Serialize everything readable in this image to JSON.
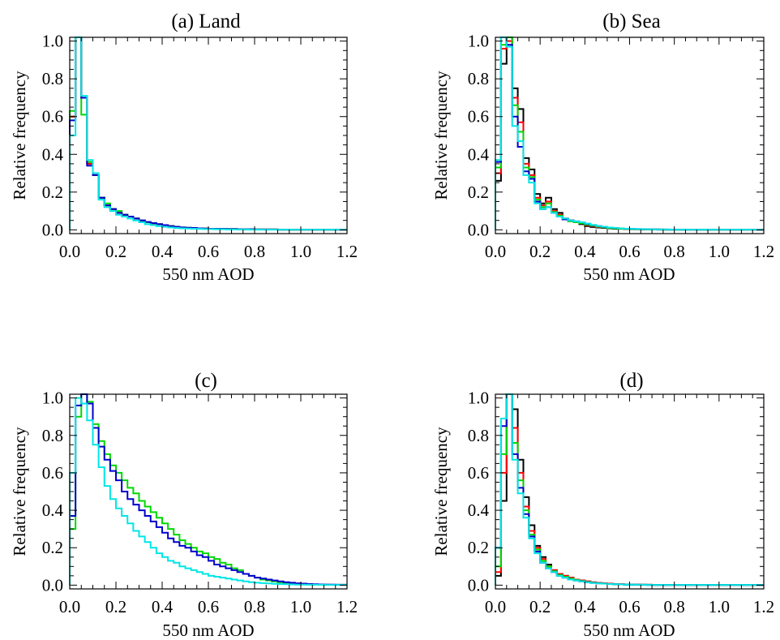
{
  "chart_data": [
    {
      "type": "line",
      "title": "(a) Land",
      "xlabel": "550 nm AOD",
      "ylabel": "Relative frequency",
      "xlim": [
        0,
        1.2
      ],
      "ylim": [
        -0.02,
        1.02
      ],
      "step": "histogram",
      "bin_width": 0.025,
      "x_ticks": [
        "0.0",
        "0.2",
        "0.4",
        "0.6",
        "0.8",
        "1.0",
        "1.2"
      ],
      "y_ticks": [
        "0.0",
        "0.2",
        "0.4",
        "0.6",
        "0.8",
        "1.0"
      ],
      "series": [
        {
          "color": "#000000",
          "values": [
            0.6,
            1.02,
            0.7,
            0.35,
            0.29,
            0.17,
            0.13,
            0.11,
            0.09,
            0.08,
            0.07,
            0.06,
            0.05,
            0.04,
            0.035,
            0.03,
            0.025,
            0.02,
            0.015,
            0.012,
            0.01,
            0.01,
            0.008,
            0.007,
            0.006,
            0.005,
            0.005,
            0.004,
            0.004,
            0.003,
            0.003,
            0.003,
            0.002,
            0.002,
            0.002,
            0.002,
            0.001,
            0.001,
            0.001,
            0.001,
            0.001,
            0.001,
            0.001,
            0.001,
            0.001,
            0.001,
            0.001,
            0.001
          ]
        },
        {
          "color": "#ff0000",
          "values": [
            0.6,
            1.02,
            0.7,
            0.35,
            0.29,
            0.17,
            0.13,
            0.11,
            0.09,
            0.08,
            0.07,
            0.06,
            0.05,
            0.04,
            0.035,
            0.03,
            0.025,
            0.02,
            0.015,
            0.012,
            0.01,
            0.01,
            0.008,
            0.007,
            0.006,
            0.005,
            0.005,
            0.004,
            0.004,
            0.003,
            0.003,
            0.003,
            0.002,
            0.002,
            0.002,
            0.002,
            0.001,
            0.001,
            0.001,
            0.001,
            0.001,
            0.001,
            0.001,
            0.001,
            0.001,
            0.001,
            0.001,
            0.001
          ]
        },
        {
          "color": "#00d800",
          "values": [
            0.63,
            1.02,
            0.61,
            0.36,
            0.3,
            0.17,
            0.14,
            0.11,
            0.1,
            0.08,
            0.07,
            0.06,
            0.05,
            0.04,
            0.035,
            0.03,
            0.025,
            0.02,
            0.016,
            0.013,
            0.011,
            0.01,
            0.008,
            0.007,
            0.006,
            0.005,
            0.005,
            0.004,
            0.004,
            0.003,
            0.003,
            0.003,
            0.002,
            0.002,
            0.002,
            0.002,
            0.001,
            0.001,
            0.001,
            0.001,
            0.001,
            0.001,
            0.001,
            0.001,
            0.001,
            0.001,
            0.001,
            0.001
          ]
        },
        {
          "color": "#0000cc",
          "values": [
            0.58,
            1.02,
            0.7,
            0.34,
            0.29,
            0.17,
            0.13,
            0.11,
            0.09,
            0.08,
            0.07,
            0.06,
            0.05,
            0.042,
            0.036,
            0.03,
            0.025,
            0.02,
            0.016,
            0.013,
            0.011,
            0.01,
            0.008,
            0.007,
            0.006,
            0.005,
            0.005,
            0.004,
            0.004,
            0.003,
            0.003,
            0.003,
            0.002,
            0.002,
            0.002,
            0.002,
            0.001,
            0.001,
            0.001,
            0.001,
            0.001,
            0.001,
            0.001,
            0.001,
            0.001,
            0.001,
            0.001,
            0.001
          ]
        },
        {
          "color": "#00e6e6",
          "values": [
            0.5,
            1.02,
            0.71,
            0.37,
            0.3,
            0.16,
            0.12,
            0.1,
            0.08,
            0.07,
            0.06,
            0.05,
            0.04,
            0.03,
            0.025,
            0.02,
            0.016,
            0.013,
            0.01,
            0.008,
            0.007,
            0.006,
            0.005,
            0.004,
            0.004,
            0.003,
            0.003,
            0.002,
            0.002,
            0.002,
            0.002,
            0.001,
            0.001,
            0.001,
            0.001,
            0.001,
            0.001,
            0.001,
            0.001,
            0.001,
            0.001,
            0.001,
            0.001,
            0.001,
            0.001,
            0.001,
            0.001,
            0.001
          ]
        }
      ]
    },
    {
      "type": "line",
      "title": "(b) Sea",
      "xlabel": "550 nm AOD",
      "ylabel": "Relative frequency",
      "xlim": [
        0,
        1.2
      ],
      "ylim": [
        -0.02,
        1.02
      ],
      "step": "histogram",
      "bin_width": 0.025,
      "x_ticks": [
        "0.0",
        "0.2",
        "0.4",
        "0.6",
        "0.8",
        "1.0",
        "1.2"
      ],
      "y_ticks": [
        "0.0",
        "0.2",
        "0.4",
        "0.6",
        "0.8",
        "1.0"
      ],
      "series": [
        {
          "color": "#000000",
          "values": [
            0.26,
            0.88,
            1.02,
            0.75,
            0.64,
            0.38,
            0.32,
            0.19,
            0.14,
            0.17,
            0.11,
            0.09,
            0.06,
            0.05,
            0.04,
            0.03,
            0.02,
            0.015,
            0.012,
            0.01,
            0.008,
            0.006,
            0.005,
            0.004,
            0.003,
            0.003,
            0.002,
            0.002,
            0.002,
            0.001,
            0.001,
            0.001,
            0.001,
            0.001,
            0.001,
            0.001,
            0.001,
            0.001,
            0.001,
            0.001,
            0.001,
            0.001,
            0.001,
            0.001,
            0.001,
            0.001,
            0.001,
            0.001
          ]
        },
        {
          "color": "#ff0000",
          "values": [
            0.3,
            0.96,
            1.0,
            0.7,
            0.57,
            0.35,
            0.29,
            0.17,
            0.13,
            0.15,
            0.1,
            0.08,
            0.06,
            0.05,
            0.04,
            0.035,
            0.025,
            0.02,
            0.015,
            0.012,
            0.01,
            0.008,
            0.006,
            0.005,
            0.004,
            0.003,
            0.003,
            0.002,
            0.002,
            0.002,
            0.001,
            0.001,
            0.001,
            0.001,
            0.001,
            0.001,
            0.001,
            0.001,
            0.001,
            0.001,
            0.001,
            0.001,
            0.001,
            0.001,
            0.001,
            0.001,
            0.001,
            0.001
          ]
        },
        {
          "color": "#00d800",
          "values": [
            0.33,
            0.98,
            1.02,
            0.66,
            0.52,
            0.33,
            0.28,
            0.16,
            0.12,
            0.14,
            0.095,
            0.075,
            0.055,
            0.045,
            0.04,
            0.035,
            0.028,
            0.022,
            0.017,
            0.013,
            0.01,
            0.008,
            0.006,
            0.005,
            0.004,
            0.003,
            0.003,
            0.002,
            0.002,
            0.002,
            0.001,
            0.001,
            0.001,
            0.001,
            0.001,
            0.001,
            0.001,
            0.001,
            0.001,
            0.001,
            0.001,
            0.001,
            0.001,
            0.001,
            0.001,
            0.001,
            0.001,
            0.001
          ]
        },
        {
          "color": "#0000cc",
          "values": [
            0.36,
            1.02,
            0.98,
            0.6,
            0.44,
            0.31,
            0.27,
            0.15,
            0.11,
            0.12,
            0.09,
            0.07,
            0.055,
            0.05,
            0.045,
            0.04,
            0.032,
            0.025,
            0.02,
            0.015,
            0.012,
            0.01,
            0.008,
            0.006,
            0.005,
            0.004,
            0.003,
            0.003,
            0.002,
            0.002,
            0.002,
            0.001,
            0.001,
            0.001,
            0.001,
            0.001,
            0.001,
            0.001,
            0.001,
            0.001,
            0.001,
            0.001,
            0.001,
            0.001,
            0.001,
            0.001,
            0.001,
            0.001
          ]
        },
        {
          "color": "#00e6e6",
          "values": [
            0.37,
            1.02,
            0.97,
            0.55,
            0.47,
            0.29,
            0.25,
            0.14,
            0.11,
            0.12,
            0.09,
            0.07,
            0.06,
            0.05,
            0.045,
            0.04,
            0.033,
            0.026,
            0.02,
            0.016,
            0.012,
            0.01,
            0.008,
            0.006,
            0.005,
            0.004,
            0.003,
            0.003,
            0.002,
            0.002,
            0.002,
            0.001,
            0.001,
            0.001,
            0.001,
            0.001,
            0.001,
            0.001,
            0.001,
            0.001,
            0.001,
            0.001,
            0.001,
            0.001,
            0.001,
            0.001,
            0.001,
            0.001
          ]
        }
      ]
    },
    {
      "type": "line",
      "title": "(c)",
      "xlabel": "550 nm AOD",
      "ylabel": "Relative frequency",
      "xlim": [
        0,
        1.2
      ],
      "ylim": [
        -0.02,
        1.02
      ],
      "step": "histogram",
      "bin_width": 0.025,
      "x_ticks": [
        "0.0",
        "0.2",
        "0.4",
        "0.6",
        "0.8",
        "1.0",
        "1.2"
      ],
      "y_ticks": [
        "0.0",
        "0.2",
        "0.4",
        "0.6",
        "0.8",
        "1.0"
      ],
      "series": [
        {
          "color": "#00d800",
          "values": [
            0.3,
            0.9,
            1.02,
            0.98,
            0.86,
            0.77,
            0.7,
            0.64,
            0.6,
            0.56,
            0.52,
            0.49,
            0.45,
            0.42,
            0.39,
            0.36,
            0.33,
            0.3,
            0.27,
            0.24,
            0.22,
            0.2,
            0.18,
            0.17,
            0.15,
            0.14,
            0.12,
            0.11,
            0.09,
            0.08,
            0.06,
            0.05,
            0.04,
            0.03,
            0.025,
            0.02,
            0.015,
            0.012,
            0.01,
            0.008,
            0.006,
            0.005,
            0.004,
            0.003,
            0.003,
            0.002,
            0.002,
            0.002
          ]
        },
        {
          "color": "#0000cc",
          "values": [
            0.37,
            0.96,
            1.02,
            0.97,
            0.84,
            0.74,
            0.67,
            0.61,
            0.56,
            0.5,
            0.46,
            0.43,
            0.4,
            0.37,
            0.34,
            0.31,
            0.28,
            0.25,
            0.23,
            0.21,
            0.2,
            0.18,
            0.16,
            0.15,
            0.13,
            0.11,
            0.1,
            0.09,
            0.08,
            0.07,
            0.06,
            0.05,
            0.04,
            0.035,
            0.03,
            0.025,
            0.02,
            0.016,
            0.013,
            0.01,
            0.008,
            0.006,
            0.005,
            0.004,
            0.003,
            0.003,
            0.002,
            0.002
          ]
        },
        {
          "color": "#00e6e6",
          "values": [
            0.6,
            1.0,
            0.97,
            0.88,
            0.75,
            0.63,
            0.53,
            0.46,
            0.41,
            0.37,
            0.33,
            0.29,
            0.26,
            0.23,
            0.2,
            0.17,
            0.15,
            0.13,
            0.12,
            0.1,
            0.09,
            0.08,
            0.07,
            0.06,
            0.05,
            0.045,
            0.04,
            0.035,
            0.03,
            0.025,
            0.02,
            0.016,
            0.013,
            0.011,
            0.009,
            0.007,
            0.006,
            0.005,
            0.004,
            0.003,
            0.003,
            0.002,
            0.002,
            0.002,
            0.001,
            0.001,
            0.001,
            0.001
          ]
        }
      ]
    },
    {
      "type": "line",
      "title": "(d)",
      "xlabel": "550 nm AOD",
      "ylabel": "Relative frequency",
      "xlim": [
        0,
        1.2
      ],
      "ylim": [
        -0.02,
        1.02
      ],
      "step": "histogram",
      "bin_width": 0.025,
      "x_ticks": [
        "0.0",
        "0.2",
        "0.4",
        "0.6",
        "0.8",
        "1.0",
        "1.2"
      ],
      "y_ticks": [
        "0.0",
        "0.2",
        "0.4",
        "0.6",
        "0.8",
        "1.0"
      ],
      "series": [
        {
          "color": "#000000",
          "values": [
            0.05,
            0.45,
            1.02,
            0.94,
            0.67,
            0.47,
            0.32,
            0.21,
            0.15,
            0.11,
            0.08,
            0.06,
            0.05,
            0.04,
            0.03,
            0.025,
            0.02,
            0.015,
            0.012,
            0.01,
            0.008,
            0.006,
            0.005,
            0.004,
            0.003,
            0.003,
            0.002,
            0.002,
            0.001,
            0.001,
            0.001,
            0.001,
            0.001,
            0.001,
            0.001,
            0.001,
            0.001,
            0.001,
            0.001,
            0.001,
            0.001,
            0.001,
            0.001,
            0.001,
            0.001,
            0.001,
            0.001,
            0.001
          ]
        },
        {
          "color": "#ff0000",
          "values": [
            0.07,
            0.6,
            1.02,
            0.84,
            0.6,
            0.42,
            0.29,
            0.2,
            0.14,
            0.1,
            0.08,
            0.06,
            0.05,
            0.04,
            0.03,
            0.025,
            0.02,
            0.015,
            0.012,
            0.01,
            0.008,
            0.006,
            0.005,
            0.004,
            0.003,
            0.003,
            0.002,
            0.002,
            0.001,
            0.001,
            0.001,
            0.001,
            0.001,
            0.001,
            0.001,
            0.001,
            0.001,
            0.001,
            0.001,
            0.001,
            0.001,
            0.001,
            0.001,
            0.001,
            0.001,
            0.001,
            0.001,
            0.001
          ]
        },
        {
          "color": "#00d800",
          "values": [
            0.1,
            0.7,
            1.02,
            0.76,
            0.56,
            0.4,
            0.27,
            0.19,
            0.13,
            0.1,
            0.075,
            0.055,
            0.045,
            0.035,
            0.028,
            0.022,
            0.017,
            0.013,
            0.01,
            0.008,
            0.006,
            0.005,
            0.004,
            0.003,
            0.003,
            0.002,
            0.002,
            0.001,
            0.001,
            0.001,
            0.001,
            0.001,
            0.001,
            0.001,
            0.001,
            0.001,
            0.001,
            0.001,
            0.001,
            0.001,
            0.001,
            0.001,
            0.001,
            0.001,
            0.001,
            0.001,
            0.001,
            0.001
          ]
        },
        {
          "color": "#0000cc",
          "values": [
            0.2,
            0.85,
            1.02,
            0.7,
            0.52,
            0.38,
            0.26,
            0.18,
            0.12,
            0.09,
            0.07,
            0.05,
            0.04,
            0.03,
            0.025,
            0.02,
            0.015,
            0.012,
            0.01,
            0.008,
            0.006,
            0.005,
            0.004,
            0.003,
            0.003,
            0.002,
            0.002,
            0.001,
            0.001,
            0.001,
            0.001,
            0.001,
            0.001,
            0.001,
            0.001,
            0.001,
            0.001,
            0.001,
            0.001,
            0.001,
            0.001,
            0.001,
            0.001,
            0.001,
            0.001,
            0.001,
            0.001,
            0.001
          ]
        },
        {
          "color": "#00e6e6",
          "values": [
            0.2,
            0.89,
            1.02,
            0.67,
            0.49,
            0.36,
            0.25,
            0.17,
            0.12,
            0.09,
            0.07,
            0.05,
            0.04,
            0.03,
            0.025,
            0.02,
            0.015,
            0.012,
            0.01,
            0.008,
            0.006,
            0.005,
            0.004,
            0.003,
            0.003,
            0.002,
            0.002,
            0.001,
            0.001,
            0.001,
            0.001,
            0.001,
            0.001,
            0.001,
            0.001,
            0.001,
            0.001,
            0.001,
            0.001,
            0.001,
            0.001,
            0.001,
            0.001,
            0.001,
            0.001,
            0.001,
            0.001,
            0.001
          ]
        }
      ]
    }
  ]
}
